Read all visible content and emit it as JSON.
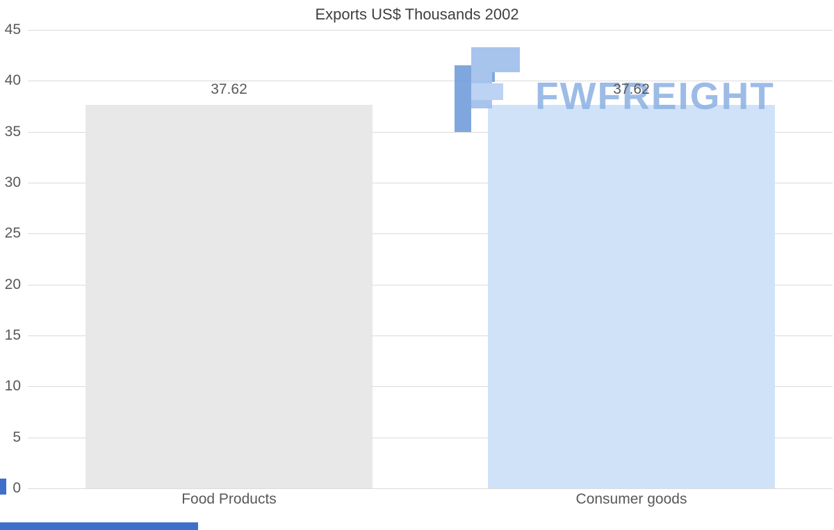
{
  "chart_data": {
    "type": "bar",
    "title": "Exports US$ Thousands 2002",
    "categories": [
      "Food Products",
      "Consumer goods"
    ],
    "values": [
      37.62,
      37.62
    ],
    "value_labels": [
      "37.62",
      "37.62"
    ],
    "xlabel": "",
    "ylabel": "",
    "ylim": [
      0,
      45
    ],
    "yticks": [
      45,
      40,
      35,
      30,
      25,
      20,
      15,
      10,
      5,
      0
    ],
    "grid": "horizontal",
    "legend": "none",
    "bar_colors": [
      "#e8e8e8",
      "#cfe2f8"
    ]
  },
  "watermark": {
    "text": "FWFREIGHT",
    "icon": "fw-logo",
    "text_color": "#8fb3e4",
    "icon_color_dark": "#6f9cd9",
    "icon_color_light": "#9cbdeb"
  },
  "accents": {
    "scrollbar_color": "#3f6fc9"
  }
}
